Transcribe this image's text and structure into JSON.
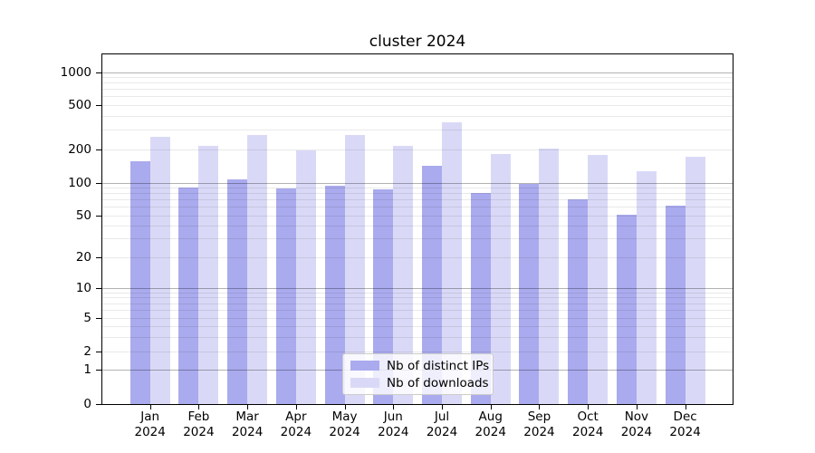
{
  "title": "cluster 2024",
  "y_axis": {
    "ticks": [
      0,
      1,
      2,
      5,
      10,
      20,
      50,
      100,
      200,
      500,
      1000
    ]
  },
  "x_axis": {
    "year": "2024",
    "months": [
      "Jan",
      "Feb",
      "Mar",
      "Apr",
      "May",
      "Jun",
      "Jul",
      "Aug",
      "Sep",
      "Oct",
      "Nov",
      "Dec"
    ]
  },
  "legend": {
    "items": [
      {
        "label": "Nb of distinct IPs",
        "color": "#aaaaee"
      },
      {
        "label": "Nb of downloads",
        "color": "#d9d9f7"
      }
    ]
  },
  "chart_data": {
    "type": "bar",
    "title": "cluster 2024",
    "categories": [
      "Jan 2024",
      "Feb 2024",
      "Mar 2024",
      "Apr 2024",
      "May 2024",
      "Jun 2024",
      "Jul 2024",
      "Aug 2024",
      "Sep 2024",
      "Oct 2024",
      "Nov 2024",
      "Dec 2024"
    ],
    "series": [
      {
        "name": "Nb of distinct IPs",
        "color": "#aaaaee",
        "values": [
          155,
          90,
          106,
          88,
          93,
          86,
          141,
          80,
          98,
          70,
          51,
          62
        ]
      },
      {
        "name": "Nb of downloads",
        "color": "#d9d9f7",
        "values": [
          261,
          216,
          268,
          197,
          268,
          217,
          350,
          182,
          204,
          178,
          126,
          172
        ]
      }
    ],
    "yscale": "symlog",
    "y_ticks": [
      0,
      1,
      2,
      5,
      10,
      20,
      50,
      100,
      200,
      500,
      1000
    ],
    "ylim": [
      0,
      1450
    ],
    "grid": "horizontal major+minor gridlines drawn over bars",
    "legend_position": "lower center"
  }
}
